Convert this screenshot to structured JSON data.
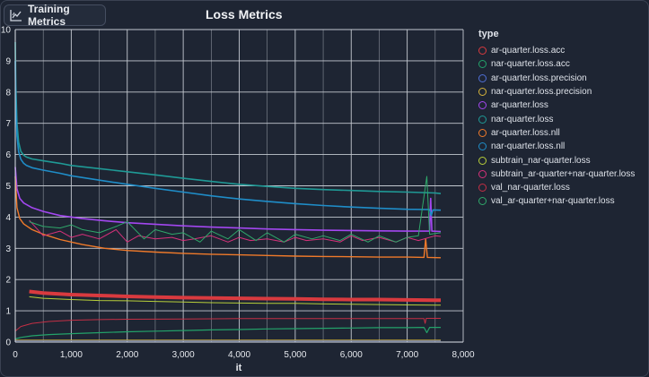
{
  "header": {
    "tab_label": "Training Metrics",
    "tab_icon": "chart-icon"
  },
  "chart_data": {
    "type": "line",
    "title": "Loss Metrics",
    "xlabel": "it",
    "ylabel": "",
    "xlim": [
      0,
      8000
    ],
    "ylim": [
      0,
      10
    ],
    "x_ticks": [
      0,
      1000,
      2000,
      3000,
      4000,
      5000,
      6000,
      7000,
      8000
    ],
    "x_tick_labels": [
      "0",
      "1,000",
      "2,000",
      "3,000",
      "4,000",
      "5,000",
      "6,000",
      "7,000",
      "8,000"
    ],
    "y_ticks": [
      0,
      1,
      2,
      3,
      4,
      5,
      6,
      7,
      8,
      9,
      10
    ],
    "y_tick_labels": [
      "0",
      "1",
      "2",
      "3",
      "4",
      "5",
      "6",
      "7",
      "8",
      "9",
      "10"
    ],
    "grid": true,
    "legend_title": "type",
    "legend_position": "right",
    "series": [
      {
        "name": "ar-quarter.loss.acc",
        "color": "#d93a3f",
        "width": 4,
        "x": [
          250,
          500,
          1000,
          1500,
          2000,
          2500,
          3000,
          3500,
          4000,
          4500,
          5000,
          5500,
          6000,
          6500,
          7000,
          7500,
          7600
        ],
        "y": [
          1.62,
          1.57,
          1.52,
          1.49,
          1.46,
          1.44,
          1.42,
          1.41,
          1.4,
          1.39,
          1.38,
          1.37,
          1.36,
          1.36,
          1.35,
          1.34,
          1.34
        ]
      },
      {
        "name": "nar-quarter.loss.acc",
        "color": "#23a36a",
        "width": 1.2,
        "x": [
          0,
          100,
          300,
          600,
          1000,
          1500,
          2000,
          2500,
          3000,
          3500,
          4000,
          4500,
          5000,
          5500,
          6000,
          6500,
          7000,
          7300,
          7350,
          7400,
          7600
        ],
        "y": [
          0.1,
          0.15,
          0.2,
          0.24,
          0.27,
          0.3,
          0.33,
          0.35,
          0.37,
          0.39,
          0.4,
          0.42,
          0.43,
          0.44,
          0.45,
          0.46,
          0.46,
          0.47,
          0.3,
          0.47,
          0.47
        ]
      },
      {
        "name": "ar-quarter.loss.precision",
        "color": "#4f6fd6",
        "width": 1,
        "x": [
          0,
          7600
        ],
        "y": [
          0.04,
          0.04
        ]
      },
      {
        "name": "nar-quarter.loss.precision",
        "color": "#d6b43c",
        "width": 1,
        "x": [
          0,
          7600
        ],
        "y": [
          0.06,
          0.06
        ]
      },
      {
        "name": "ar-quarter.loss",
        "color": "#a347f0",
        "width": 1.6,
        "x": [
          0,
          30,
          80,
          150,
          300,
          500,
          800,
          1200,
          1600,
          2000,
          2500,
          3000,
          3500,
          4000,
          4500,
          5000,
          5500,
          6000,
          6500,
          7000,
          7400,
          7420,
          7440,
          7600
        ],
        "y": [
          5.6,
          4.9,
          4.6,
          4.45,
          4.3,
          4.18,
          4.05,
          3.95,
          3.88,
          3.82,
          3.77,
          3.72,
          3.68,
          3.65,
          3.62,
          3.6,
          3.58,
          3.57,
          3.56,
          3.55,
          3.55,
          4.6,
          3.55,
          3.54
        ]
      },
      {
        "name": "nar-quarter.loss",
        "color": "#1f9a96",
        "width": 1.6,
        "x": [
          0,
          10,
          30,
          60,
          100,
          150,
          200,
          300,
          500,
          800,
          1000,
          1500,
          2000,
          2500,
          3000,
          3500,
          4000,
          4500,
          5000,
          5500,
          6000,
          6500,
          7000,
          7500,
          7600
        ],
        "y": [
          9.6,
          8.2,
          7.0,
          6.4,
          6.1,
          5.98,
          5.92,
          5.86,
          5.8,
          5.72,
          5.65,
          5.55,
          5.45,
          5.35,
          5.24,
          5.14,
          5.05,
          4.98,
          4.92,
          4.88,
          4.85,
          4.82,
          4.8,
          4.77,
          4.75
        ]
      },
      {
        "name": "ar-quarter.loss.nll",
        "color": "#f07a2a",
        "width": 1.4,
        "x": [
          0,
          30,
          80,
          150,
          300,
          500,
          800,
          1200,
          1600,
          2000,
          2500,
          3000,
          3500,
          4000,
          4500,
          5000,
          5500,
          6000,
          6500,
          7000,
          7300,
          7330,
          7360,
          7600
        ],
        "y": [
          5.3,
          4.3,
          3.95,
          3.78,
          3.6,
          3.45,
          3.28,
          3.12,
          3.0,
          2.93,
          2.88,
          2.84,
          2.81,
          2.79,
          2.77,
          2.75,
          2.74,
          2.73,
          2.72,
          2.72,
          2.71,
          3.3,
          2.71,
          2.7
        ]
      },
      {
        "name": "nar-quarter.loss.nll",
        "color": "#1f8dc8",
        "width": 1.6,
        "x": [
          0,
          10,
          30,
          60,
          100,
          150,
          200,
          300,
          500,
          800,
          1000,
          1500,
          2000,
          2500,
          3000,
          3500,
          4000,
          4500,
          5000,
          5500,
          6000,
          6500,
          7000,
          7400,
          7430,
          7460,
          7600
        ],
        "y": [
          9.0,
          7.6,
          6.6,
          6.1,
          5.85,
          5.72,
          5.65,
          5.58,
          5.5,
          5.4,
          5.32,
          5.18,
          5.05,
          4.92,
          4.8,
          4.68,
          4.58,
          4.5,
          4.43,
          4.37,
          4.32,
          4.28,
          4.25,
          4.24,
          4.05,
          4.23,
          4.22
        ]
      },
      {
        "name": "subtrain_nar-quarter.loss",
        "color": "#b8cf3a",
        "width": 1,
        "x": [
          250,
          500,
          1000,
          1500,
          2000,
          2500,
          3000,
          3500,
          4000,
          4500,
          5000,
          5500,
          6000,
          6500,
          7000,
          7500,
          7600
        ],
        "y": [
          1.45,
          1.4,
          1.36,
          1.33,
          1.32,
          1.3,
          1.28,
          1.26,
          1.25,
          1.24,
          1.24,
          1.22,
          1.21,
          1.2,
          1.19,
          1.18,
          1.18
        ]
      },
      {
        "name": "subtrain_ar-quarter+nar-quarter.loss",
        "color": "#d6317a",
        "width": 1,
        "x": [
          250,
          500,
          800,
          1000,
          1200,
          1500,
          1800,
          2000,
          2200,
          2500,
          2800,
          3000,
          3200,
          3500,
          3800,
          4000,
          4200,
          4500,
          4800,
          5000,
          5200,
          5500,
          5800,
          6000,
          6200,
          6500,
          6800,
          7000,
          7200,
          7500,
          7600
        ],
        "y": [
          3.9,
          3.4,
          3.55,
          3.35,
          3.45,
          3.3,
          3.6,
          3.2,
          3.4,
          3.3,
          3.35,
          3.25,
          3.3,
          3.4,
          3.2,
          3.35,
          3.25,
          3.3,
          3.2,
          3.35,
          3.25,
          3.3,
          3.2,
          3.4,
          3.25,
          3.35,
          3.2,
          3.35,
          3.25,
          3.4,
          3.38
        ]
      },
      {
        "name": "val_nar-quarter.loss",
        "color": "#c42f45",
        "width": 1,
        "x": [
          0,
          100,
          300,
          600,
          1000,
          1500,
          2000,
          3000,
          4000,
          5000,
          6000,
          7000,
          7300,
          7320,
          7340,
          7600
        ],
        "y": [
          0.35,
          0.5,
          0.6,
          0.66,
          0.7,
          0.72,
          0.73,
          0.74,
          0.75,
          0.75,
          0.75,
          0.75,
          0.75,
          0.6,
          0.76,
          0.76
        ]
      },
      {
        "name": "val_ar-quarter+nar-quarter.loss",
        "color": "#2fa86a",
        "width": 1,
        "x": [
          250,
          500,
          800,
          1000,
          1200,
          1500,
          1800,
          2000,
          2300,
          2500,
          2800,
          3000,
          3300,
          3500,
          3800,
          4000,
          4300,
          4500,
          4800,
          5000,
          5300,
          5500,
          5800,
          6000,
          6300,
          6500,
          6800,
          7000,
          7200,
          7350,
          7400,
          7600
        ],
        "y": [
          3.85,
          3.7,
          3.65,
          3.75,
          3.6,
          3.5,
          3.7,
          3.85,
          3.3,
          3.6,
          3.45,
          3.5,
          3.2,
          3.55,
          3.3,
          3.6,
          3.25,
          3.5,
          3.2,
          3.45,
          3.3,
          3.4,
          3.25,
          3.45,
          3.2,
          3.4,
          3.2,
          3.35,
          3.4,
          5.3,
          3.45,
          3.5
        ]
      }
    ]
  }
}
